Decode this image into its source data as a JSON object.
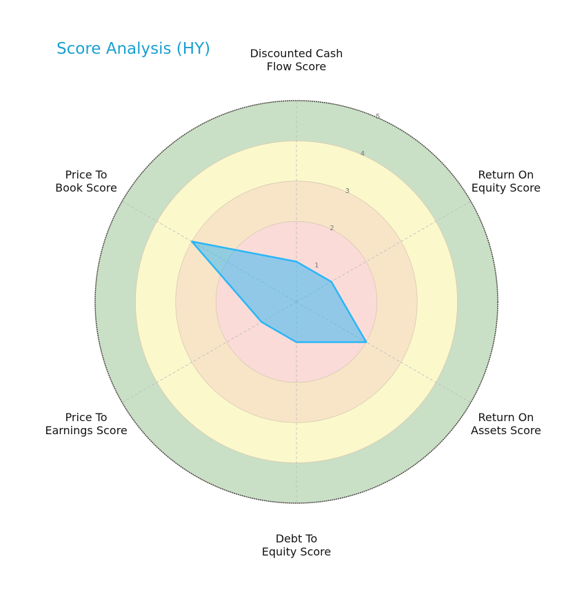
{
  "chart_data": {
    "type": "radar",
    "title": "Score Analysis (HY)",
    "categories": [
      "Discounted Cash Flow Score",
      "Return On Equity Score",
      "Return On Assets Score",
      "Debt To Equity Score",
      "Price To Earnings Score",
      "Price To Book Score"
    ],
    "series": [
      {
        "name": "HY",
        "values": [
          1,
          1,
          2,
          1,
          1,
          3
        ],
        "color": "#29b6f6"
      }
    ],
    "rlim": [
      0,
      5
    ],
    "rticks": [
      "1",
      "2",
      "3",
      "4",
      "5"
    ],
    "bands": [
      {
        "from": 0,
        "to": 2,
        "color": "#fadbd8"
      },
      {
        "from": 2,
        "to": 3,
        "color": "#f8e5c8"
      },
      {
        "from": 3,
        "to": 4,
        "color": "#fbf8cc"
      },
      {
        "from": 4,
        "to": 5,
        "color": "#c9e0c6"
      }
    ]
  },
  "labels": {
    "title": "Score Analysis (HY)",
    "dcf": [
      "Discounted Cash",
      "Flow Score"
    ],
    "roe": [
      "Return On",
      "Equity Score"
    ],
    "roa": [
      "Return On",
      "Assets Score"
    ],
    "de": [
      "Debt To",
      "Equity Score"
    ],
    "pe": [
      "Price To",
      "Earnings Score"
    ],
    "pb": [
      "Price To",
      "Book Score"
    ]
  }
}
